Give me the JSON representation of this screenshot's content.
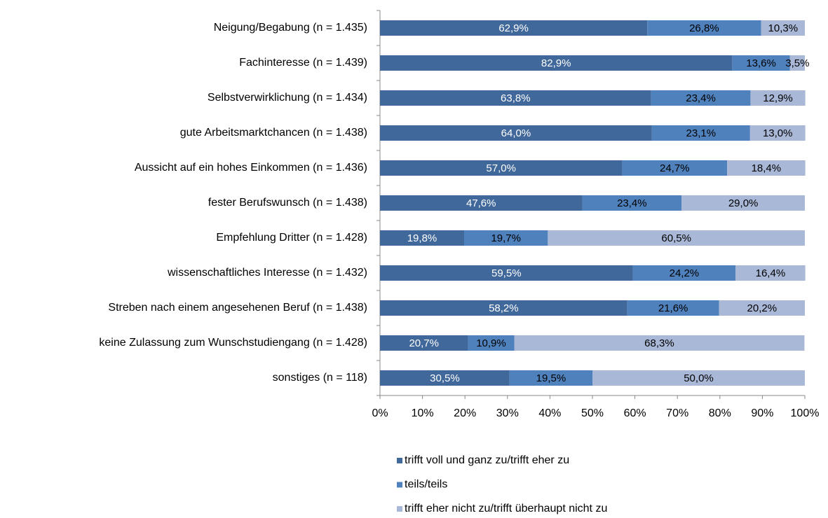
{
  "chart_data": {
    "type": "stacked-bar-horizontal",
    "categories": [
      "Neigung/Begabung (n = 1.435)",
      "Fachinteresse (n = 1.439)",
      "Selbstverwirklichung (n = 1.434)",
      "gute Arbeitsmarktchancen (n = 1.438)",
      "Aussicht auf ein hohes Einkommen (n = 1.436)",
      "fester Berufswunsch (n = 1.438)",
      "Empfehlung Dritter (n = 1.428)",
      "wissenschaftliches Interesse (n = 1.432)",
      "Streben nach einem angesehenen Beruf (n = 1.438)",
      "keine Zulassung zum Wunschstudiengang (n = 1.428)",
      "sonstiges (n = 118)"
    ],
    "series": [
      {
        "name": "trifft voll und ganz zu/trifft eher zu",
        "color": "#41689b",
        "label_color": "#ffffff",
        "values": [
          62.9,
          82.9,
          63.8,
          64.0,
          57.0,
          47.6,
          19.8,
          59.5,
          58.2,
          20.7,
          30.5
        ],
        "value_labels": [
          "62,9%",
          "82,9%",
          "63,8%",
          "64,0%",
          "57,0%",
          "47,6%",
          "19,8%",
          "59,5%",
          "58,2%",
          "20,7%",
          "30,5%"
        ]
      },
      {
        "name": "teils/teils",
        "color": "#4f81bd",
        "label_color": "#000000",
        "values": [
          26.8,
          13.6,
          23.4,
          23.1,
          24.7,
          23.4,
          19.7,
          24.2,
          21.6,
          10.9,
          19.5
        ],
        "value_labels": [
          "26,8%",
          "13,6%",
          "23,4%",
          "23,1%",
          "24,7%",
          "23,4%",
          "19,7%",
          "24,2%",
          "21,6%",
          "10,9%",
          "19,5%"
        ]
      },
      {
        "name": "trifft eher nicht zu/trifft überhaupt nicht zu",
        "color": "#a9b8d7",
        "label_color": "#000000",
        "values": [
          10.3,
          3.5,
          12.9,
          13.0,
          18.4,
          29.0,
          60.5,
          16.4,
          20.2,
          68.3,
          50.0
        ],
        "value_labels": [
          "10,3%",
          "3,5%",
          "12,9%",
          "13,0%",
          "18,4%",
          "29,0%",
          "60,5%",
          "16,4%",
          "20,2%",
          "68,3%",
          "50,0%"
        ]
      }
    ],
    "xlim": [
      0,
      100
    ],
    "xticks": [
      {
        "value": 0,
        "label": "0%"
      },
      {
        "value": 10,
        "label": "10%"
      },
      {
        "value": 20,
        "label": "20%"
      },
      {
        "value": 30,
        "label": "30%"
      },
      {
        "value": 40,
        "label": "40%"
      },
      {
        "value": 50,
        "label": "50%"
      },
      {
        "value": 60,
        "label": "60%"
      },
      {
        "value": 70,
        "label": "70%"
      },
      {
        "value": 80,
        "label": "80%"
      },
      {
        "value": 90,
        "label": "90%"
      },
      {
        "value": 100,
        "label": "100%"
      }
    ],
    "legend": "bottom"
  }
}
